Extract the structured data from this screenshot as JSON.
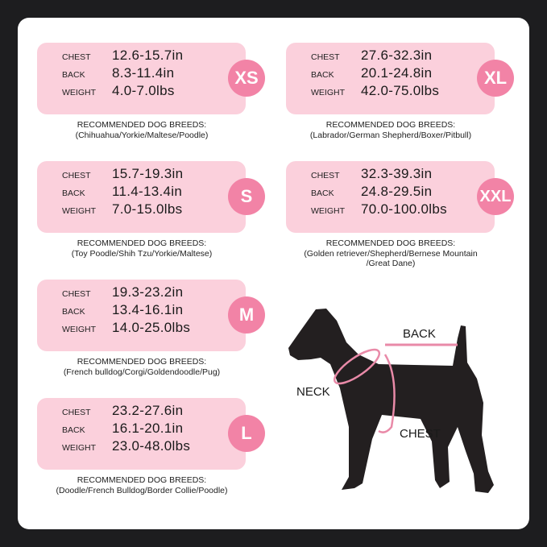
{
  "labels": {
    "chest": "CHEST",
    "back": "BACK",
    "weight": "WEIGHT",
    "recommended": "RECOMMENDED DOG BREEDS:"
  },
  "colors": {
    "card": "#fbd0dc",
    "badge": "#f283a6",
    "background": "#1d1d1f"
  },
  "sizes": [
    {
      "size": "XS",
      "chest": "12.6-15.7in",
      "back": "8.3-11.4in",
      "weight": "4.0-7.0lbs",
      "breeds": [
        "(Chihuahua/Yorkie/Maltese/Poodle)"
      ]
    },
    {
      "size": "S",
      "chest": "15.7-19.3in",
      "back": "11.4-13.4in",
      "weight": "7.0-15.0lbs",
      "breeds": [
        "(Toy Poodle/Shih Tzu/Yorkie/Maltese)"
      ]
    },
    {
      "size": "M",
      "chest": "19.3-23.2in",
      "back": "13.4-16.1in",
      "weight": "14.0-25.0lbs",
      "breeds": [
        "(French bulldog/Corgi/Goldendoodle/Pug)"
      ]
    },
    {
      "size": "L",
      "chest": "23.2-27.6in",
      "back": "16.1-20.1in",
      "weight": "23.0-48.0lbs",
      "breeds": [
        "(Doodle/French Bulldog/Border Collie/Poodle)"
      ]
    },
    {
      "size": "XL",
      "chest": "27.6-32.3in",
      "back": "20.1-24.8in",
      "weight": "42.0-75.0lbs",
      "breeds": [
        "(Labrador/German Shepherd/Boxer/Pitbull)"
      ]
    },
    {
      "size": "XXL",
      "chest": "32.3-39.3in",
      "back": "24.8-29.5in",
      "weight": "70.0-100.0lbs",
      "breeds": [
        "(Golden retriever/Shepherd/Bernese Mountain",
        "/Great Dane)"
      ]
    }
  ],
  "diagram": {
    "back": "BACK",
    "neck": "NECK",
    "chest": "CHEST"
  }
}
